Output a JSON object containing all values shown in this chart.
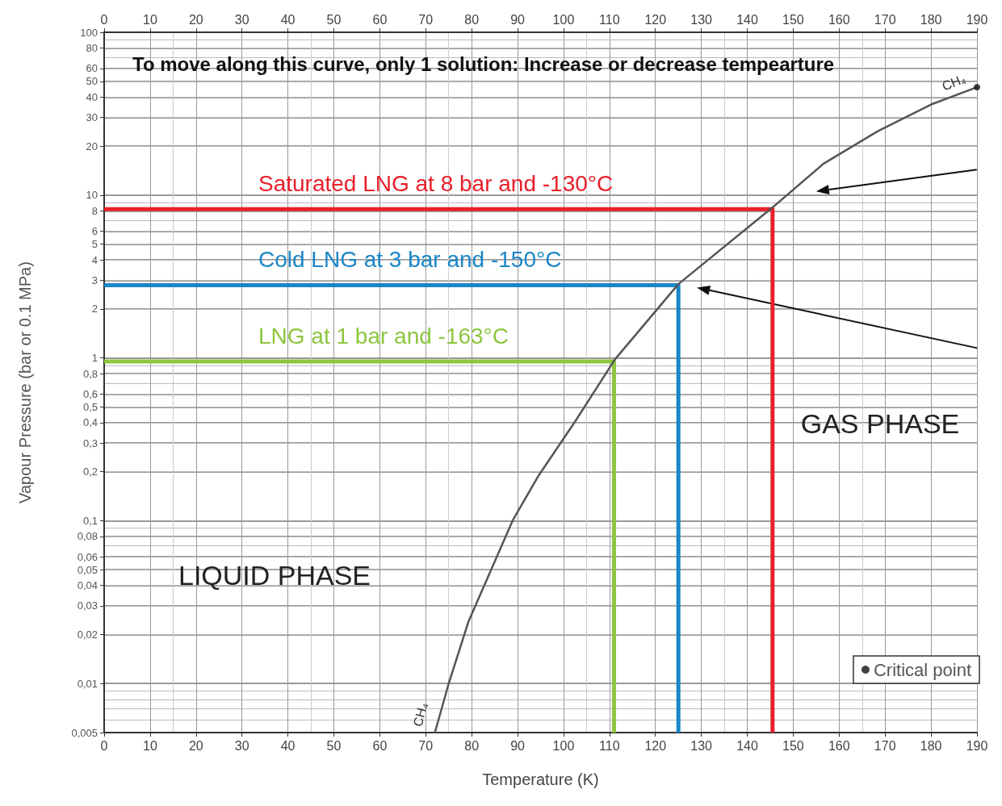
{
  "chart_data": {
    "type": "line",
    "xlabel": "Temperature (K)",
    "ylabel": "Vapour Pressure (bar or 0.1 MPa)",
    "xlim": [
      0,
      190
    ],
    "xticks": [
      0,
      10,
      20,
      30,
      40,
      50,
      60,
      70,
      80,
      90,
      100,
      110,
      120,
      130,
      140,
      150,
      160,
      170,
      180,
      190
    ],
    "x2lim": [
      0,
      190
    ],
    "x2ticks": [
      0,
      10,
      20,
      30,
      40,
      50,
      60,
      70,
      80,
      90,
      100,
      110,
      120,
      130,
      140,
      150,
      160,
      170,
      180,
      190
    ],
    "ylim": [
      0.005,
      100
    ],
    "yticks": [
      {
        "value": 0.005,
        "label": "0,005"
      },
      {
        "value": 0.01,
        "label": "0,01"
      },
      {
        "value": 0.02,
        "label": "0,02"
      },
      {
        "value": 0.03,
        "label": "0,03"
      },
      {
        "value": 0.04,
        "label": "0,04"
      },
      {
        "value": 0.05,
        "label": "0,05"
      },
      {
        "value": 0.06,
        "label": "0,06"
      },
      {
        "value": 0.08,
        "label": "0,08"
      },
      {
        "value": 0.1,
        "label": "0,1"
      },
      {
        "value": 0.2,
        "label": "0,2"
      },
      {
        "value": 0.3,
        "label": "0,3"
      },
      {
        "value": 0.4,
        "label": "0,4"
      },
      {
        "value": 0.5,
        "label": "0,5"
      },
      {
        "value": 0.6,
        "label": "0,6"
      },
      {
        "value": 0.8,
        "label": "0,8"
      },
      1,
      2,
      3,
      4,
      5,
      6,
      8,
      10,
      20,
      30,
      40,
      50,
      60,
      80,
      100
    ],
    "log": "y",
    "grid": true,
    "legend": "bottom right",
    "series": [
      {
        "color": "#555555",
        "x": [
          72,
          75,
          79.3,
          88.9,
          94.6,
          102.6,
          111.2,
          125,
          145.5,
          156.6,
          168.4,
          180,
          190
        ],
        "values": [
          0.005,
          0.01,
          0.024,
          0.1,
          0.19,
          0.41,
          0.98,
          2.84,
          8.4,
          15.6,
          24.7,
          36,
          46
        ]
      },
      {
        "name": "Saturated LNG at 8 bar and -130°C",
        "color": "#e8202a",
        "x": [
          0,
          145.5,
          145.5
        ],
        "values": [
          8.2,
          8.2,
          0.005
        ]
      },
      {
        "name": "Cold LNG at 3 bar and -150°C",
        "color": "#1a86c8",
        "x": [
          0,
          125,
          125
        ],
        "values": [
          2.8,
          2.8,
          0.005
        ]
      },
      {
        "name": "LNG at 1 bar and -163°C",
        "color": "#8dc63f",
        "x": [
          0,
          111,
          111
        ],
        "values": [
          0.95,
          0.95,
          0.005
        ]
      },
      {
        "type": "scatter",
        "name": "Critical point",
        "color": "#111111",
        "x": [
          190
        ],
        "values": [
          46
        ]
      }
    ],
    "annotations": [
      "To move along this curve, only 1 solution: Increase or decrease tempearture",
      "GAS PHASE",
      "LIQUID PHASE",
      {
        "text": "CH₄",
        "x": 190,
        "y": 46
      },
      {
        "text": "CH₄",
        "x": 72,
        "y": 0.005
      }
    ]
  }
}
